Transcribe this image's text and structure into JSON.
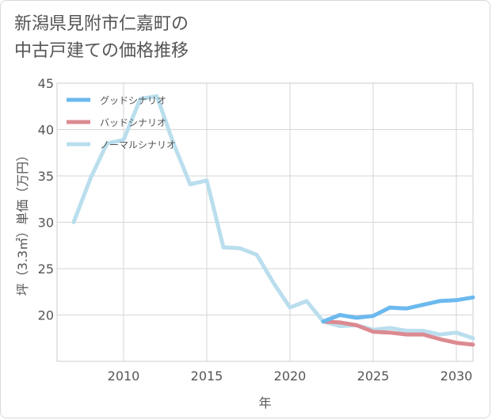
{
  "title_lines": [
    "新潟県見附市仁嘉町の",
    "中古戸建ての価格推移"
  ],
  "chart_data": {
    "type": "line",
    "title": "新潟県見附市仁嘉町の中古戸建ての価格推移",
    "xlabel": "年",
    "ylabel": "坪（3.3㎡）単価（万円）",
    "xlim": [
      2006,
      2031
    ],
    "ylim": [
      15,
      45
    ],
    "xticks": [
      2010,
      2015,
      2020,
      2025,
      2030
    ],
    "yticks": [
      20,
      25,
      30,
      35,
      40,
      45
    ],
    "grid": true,
    "legend_position": "top-left",
    "series": [
      {
        "name": "グッドシナリオ",
        "color": "#6bb9ee",
        "x": [
          2022,
          2023,
          2024,
          2025,
          2026,
          2027,
          2028,
          2029,
          2030,
          2031
        ],
        "y": [
          19.3,
          20.0,
          19.7,
          19.9,
          20.8,
          20.7,
          21.1,
          21.5,
          21.6,
          21.9
        ]
      },
      {
        "name": "バッドシナリオ",
        "color": "#dc8a91",
        "x": [
          2022,
          2023,
          2024,
          2025,
          2026,
          2027,
          2028,
          2029,
          2030,
          2031
        ],
        "y": [
          19.3,
          19.2,
          18.9,
          18.2,
          18.1,
          17.9,
          17.9,
          17.4,
          17.0,
          16.8
        ]
      },
      {
        "name": "ノーマルシナリオ",
        "color": "#badeed",
        "x": [
          2007,
          2008,
          2009,
          2010,
          2011,
          2012,
          2013,
          2014,
          2015,
          2016,
          2017,
          2018,
          2019,
          2020,
          2021,
          2022,
          2023,
          2024,
          2025,
          2026,
          2027,
          2028,
          2029,
          2030,
          2031
        ],
        "y": [
          30.0,
          34.7,
          38.5,
          38.9,
          43.3,
          43.6,
          38.5,
          34.1,
          34.5,
          27.3,
          27.2,
          26.5,
          23.5,
          20.8,
          21.5,
          19.3,
          18.8,
          18.9,
          18.4,
          18.6,
          18.3,
          18.3,
          17.9,
          18.1,
          17.5
        ]
      }
    ]
  }
}
